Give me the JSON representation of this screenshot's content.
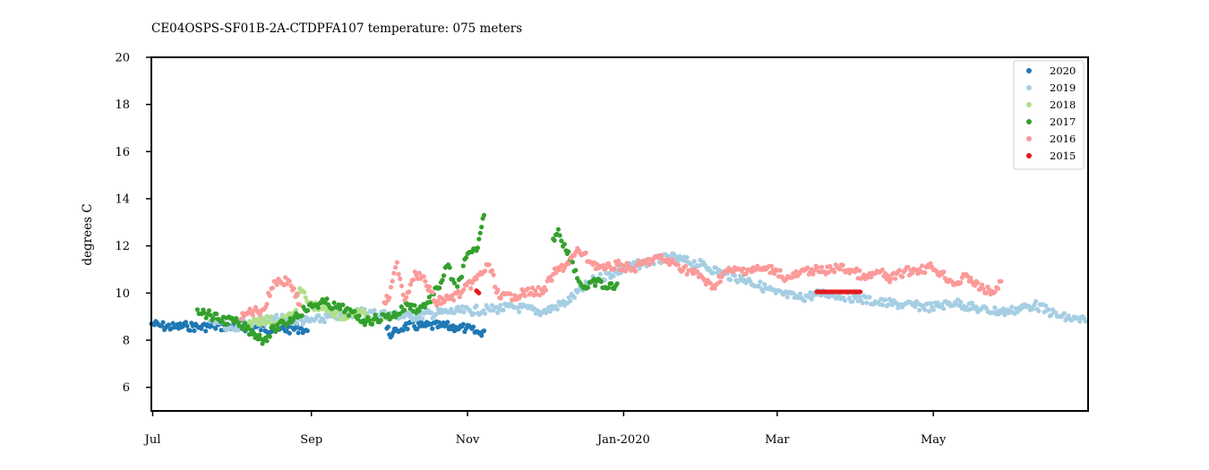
{
  "chart_data": {
    "type": "scatter",
    "title": "CE04OSPS-SF01B-2A-CTDPFA107 temperature: 075 meters",
    "xlabel": "",
    "ylabel": "degrees C",
    "ylim": [
      5,
      20
    ],
    "xlim": [
      "Jul 1",
      "Jun 30"
    ],
    "y_ticks": [
      6,
      8,
      10,
      12,
      14,
      16,
      18,
      20
    ],
    "x_ticks": [
      {
        "label": "Jul",
        "value": "Jul 1"
      },
      {
        "label": "Sep",
        "value": "Sep 1"
      },
      {
        "label": "Nov",
        "value": "Nov 1"
      },
      {
        "label": "Jan-2020",
        "value": "Jan 1"
      },
      {
        "label": "Mar",
        "value": "Mar 1"
      },
      {
        "label": "May",
        "value": "May 1"
      }
    ],
    "grid": false,
    "legend_position": "top-right",
    "series": [
      {
        "name": "2020",
        "color": "#1f78b4",
        "points": [
          [
            "Jul 1",
            8.7
          ],
          [
            "Jul 5",
            8.6
          ],
          [
            "Jul 10",
            8.55
          ],
          [
            "Jul 15",
            8.6
          ],
          [
            "Jul 20",
            8.55
          ],
          [
            "Jul 25",
            8.6
          ],
          [
            "Aug 10",
            8.55
          ],
          [
            "Aug 20",
            8.45
          ],
          [
            "Aug 28",
            8.5
          ],
          [
            "Aug 31",
            8.4
          ],
          [
            "Oct 1",
            8.5
          ],
          [
            "Oct 3",
            8.2
          ],
          [
            "Oct 5",
            8.4
          ],
          [
            "Oct 8",
            8.6
          ],
          [
            "Oct 15",
            8.6
          ],
          [
            "Oct 22",
            8.6
          ],
          [
            "Oct 28",
            8.55
          ],
          [
            "Nov 1",
            8.5
          ],
          [
            "Nov 6",
            8.3
          ],
          [
            "Nov 8",
            8.4
          ]
        ]
      },
      {
        "name": "2019",
        "color": "#a6cee3",
        "points": [
          [
            "Jul 24",
            8.8
          ],
          [
            "Jul 28",
            8.9
          ],
          [
            "Jul 31",
            8.5
          ],
          [
            "Aug 10",
            8.8
          ],
          [
            "Aug 20",
            8.9
          ],
          [
            "Sep 1",
            8.8
          ],
          [
            "Sep 10",
            9.0
          ],
          [
            "Sep 20",
            9.2
          ],
          [
            "Oct 10",
            9.0
          ],
          [
            "Oct 25",
            9.2
          ],
          [
            "Nov 10",
            9.3
          ],
          [
            "Nov 20",
            9.4
          ],
          [
            "Dec 1",
            9.2
          ],
          [
            "Dec 10",
            9.6
          ],
          [
            "Dec 20",
            10.5
          ],
          [
            "Jan 1",
            11.0
          ],
          [
            "Jan 10",
            11.3
          ],
          [
            "Jan 20",
            11.5
          ],
          [
            "Feb 1",
            11.2
          ],
          [
            "Feb 10",
            10.8
          ],
          [
            "Feb 20",
            10.5
          ],
          [
            "Mar 1",
            10.0
          ],
          [
            "Mar 10",
            9.8
          ],
          [
            "Mar 20",
            10.0
          ],
          [
            "Apr 1",
            9.8
          ],
          [
            "Apr 10",
            9.6
          ],
          [
            "Apr 20",
            9.5
          ],
          [
            "May 1",
            9.4
          ],
          [
            "May 10",
            9.6
          ],
          [
            "May 20",
            9.3
          ],
          [
            "May 30",
            9.2
          ],
          [
            "Jun 10",
            9.5
          ],
          [
            "Jun 20",
            9.0
          ],
          [
            "Jun 30",
            8.8
          ]
        ]
      },
      {
        "name": "2018",
        "color": "#b2df8a",
        "points": [
          [
            "Aug 8",
            8.7
          ],
          [
            "Aug 14",
            8.9
          ],
          [
            "Aug 20",
            8.7
          ],
          [
            "Aug 26",
            9.2
          ],
          [
            "Aug 28",
            10.2
          ],
          [
            "Sep 1",
            9.5
          ],
          [
            "Sep 8",
            9.3
          ],
          [
            "Sep 14",
            9.0
          ],
          [
            "Sep 20",
            9.2
          ],
          [
            "Sep 26",
            8.9
          ]
        ]
      },
      {
        "name": "2017",
        "color": "#33a02c",
        "points": [
          [
            "Jul 19",
            9.3
          ],
          [
            "Jul 23",
            9.1
          ],
          [
            "Jul 27",
            8.9
          ],
          [
            "Aug 2",
            8.8
          ],
          [
            "Aug 6",
            8.6
          ],
          [
            "Aug 10",
            8.3
          ],
          [
            "Aug 14",
            8.0
          ],
          [
            "Aug 18",
            8.5
          ],
          [
            "Aug 22",
            8.7
          ],
          [
            "Aug 26",
            9.0
          ],
          [
            "Aug 30",
            9.3
          ],
          [
            "Sep 3",
            9.5
          ],
          [
            "Sep 7",
            9.6
          ],
          [
            "Sep 11",
            9.4
          ],
          [
            "Sep 15",
            9.3
          ],
          [
            "Sep 19",
            9.0
          ],
          [
            "Sep 23",
            8.8
          ],
          [
            "Sep 27",
            8.9
          ],
          [
            "Oct 1",
            9.0
          ],
          [
            "Oct 5",
            9.1
          ],
          [
            "Oct 9",
            9.5
          ],
          [
            "Oct 13",
            9.3
          ],
          [
            "Oct 17",
            9.6
          ],
          [
            "Oct 21",
            10.2
          ],
          [
            "Oct 25",
            11.2
          ],
          [
            "Oct 28",
            10.0
          ],
          [
            "Nov 1",
            11.5
          ],
          [
            "Nov 5",
            11.8
          ],
          [
            "Nov 7",
            12.8
          ],
          [
            "Nov 8",
            13.3
          ],
          [
            "Dec 5",
            12.3
          ],
          [
            "Dec 7",
            12.7
          ],
          [
            "Dec 10",
            11.8
          ],
          [
            "Dec 12",
            11.5
          ],
          [
            "Dec 15",
            10.5
          ],
          [
            "Dec 18",
            10.2
          ],
          [
            "Dec 22",
            10.5
          ],
          [
            "Dec 26",
            10.2
          ],
          [
            "Dec 30",
            10.4
          ]
        ]
      },
      {
        "name": "2016",
        "color": "#fb9a99",
        "points": [
          [
            "Aug 5",
            8.9
          ],
          [
            "Aug 8",
            9.2
          ],
          [
            "Aug 14",
            9.3
          ],
          [
            "Aug 18",
            10.5
          ],
          [
            "Aug 24",
            10.5
          ],
          [
            "Aug 28",
            9.5
          ],
          [
            "Sep 30",
            9.6
          ],
          [
            "Oct 2",
            9.8
          ],
          [
            "Oct 5",
            11.3
          ],
          [
            "Oct 8",
            9.7
          ],
          [
            "Oct 12",
            10.9
          ],
          [
            "Oct 16",
            10.5
          ],
          [
            "Oct 20",
            9.6
          ],
          [
            "Oct 26",
            9.8
          ],
          [
            "Oct 30",
            10.0
          ],
          [
            "Nov 5",
            10.6
          ],
          [
            "Nov 10",
            11.2
          ],
          [
            "Nov 14",
            9.8
          ],
          [
            "Nov 20",
            9.9
          ],
          [
            "Nov 28",
            10.1
          ],
          [
            "Dec 1",
            10.0
          ],
          [
            "Dec 5",
            10.8
          ],
          [
            "Dec 10",
            11.2
          ],
          [
            "Dec 15",
            11.8
          ],
          [
            "Dec 20",
            11.3
          ],
          [
            "Dec 25",
            11.0
          ],
          [
            "Dec 30",
            11.2
          ],
          [
            "Jan 5",
            11.0
          ],
          [
            "Jan 10",
            11.3
          ],
          [
            "Jan 15",
            11.5
          ],
          [
            "Jan 20",
            11.3
          ],
          [
            "Feb 1",
            10.7
          ],
          [
            "Feb 5",
            10.2
          ],
          [
            "Feb 10",
            10.9
          ],
          [
            "Feb 20",
            11.0
          ],
          [
            "Mar 1",
            11.0
          ],
          [
            "Mar 5",
            10.6
          ],
          [
            "Mar 10",
            10.8
          ],
          [
            "Mar 15",
            11.0
          ],
          [
            "Mar 20",
            10.9
          ],
          [
            "Mar 25",
            11.1
          ],
          [
            "Apr 1",
            10.9
          ],
          [
            "Apr 5",
            10.6
          ],
          [
            "Apr 10",
            10.9
          ],
          [
            "Apr 15",
            10.6
          ],
          [
            "Apr 20",
            10.9
          ],
          [
            "May 1",
            11.1
          ],
          [
            "May 5",
            10.8
          ],
          [
            "May 10",
            10.4
          ],
          [
            "May 15",
            10.7
          ],
          [
            "May 20",
            10.2
          ],
          [
            "May 25",
            10.0
          ],
          [
            "May 28",
            10.5
          ]
        ]
      },
      {
        "name": "2015",
        "color": "#e31a1c",
        "points": [
          [
            "Nov 5",
            10.1
          ],
          [
            "Nov 6",
            10.0
          ],
          [
            "Mar 17",
            10.05
          ],
          [
            "Mar 20",
            10.05
          ],
          [
            "Mar 23",
            10.05
          ],
          [
            "Mar 26",
            10.05
          ],
          [
            "Mar 29",
            10.05
          ],
          [
            "Apr 1",
            10.05
          ],
          [
            "Apr 3",
            10.05
          ]
        ]
      }
    ]
  }
}
